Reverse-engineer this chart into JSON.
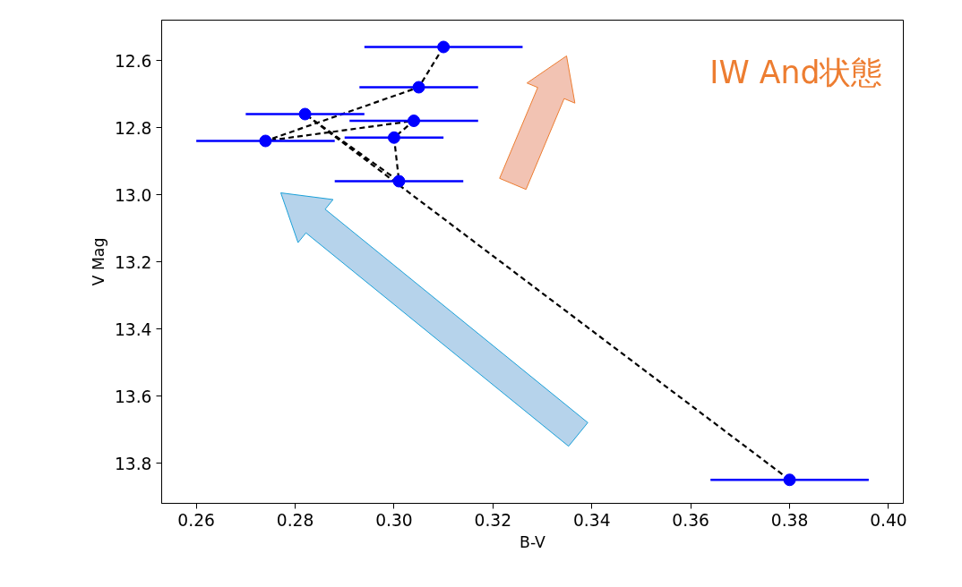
{
  "chart_data": {
    "type": "scatter",
    "xlabel": "B-V",
    "ylabel": "V Mag",
    "annotations": [
      "IW And状態"
    ],
    "xlim": [
      0.253,
      0.403
    ],
    "ylim": [
      13.92,
      12.48
    ],
    "xticks": [
      0.26,
      0.28,
      {
        "value": 0.3,
        "label": "0.30"
      },
      0.32,
      0.34,
      0.36,
      0.38,
      {
        "value": 0.4,
        "label": "0.40"
      }
    ],
    "yticks": [
      12.6,
      12.8,
      {
        "value": 13.0,
        "label": "13.0"
      },
      13.2,
      13.4,
      13.6,
      13.8
    ],
    "grid": false,
    "series": [
      {
        "type": "line",
        "color": "#000000",
        "line_style": "dashed",
        "marker": "none",
        "x": [
          0.31,
          0.305,
          0.274,
          0.304,
          0.3,
          0.301,
          0.282,
          0.38
        ],
        "values": [
          12.56,
          12.68,
          12.84,
          12.78,
          12.83,
          12.96,
          12.76,
          13.85
        ]
      },
      {
        "color": "#0000ff",
        "marker": "circle",
        "x": [
          0.31,
          0.305,
          0.274,
          0.304,
          0.3,
          0.301,
          0.282,
          0.38
        ],
        "values": [
          12.56,
          12.68,
          12.84,
          12.78,
          12.83,
          12.96,
          12.76,
          13.85
        ],
        "xerrors": [
          0.016,
          0.012,
          0.014,
          0.013,
          0.01,
          0.013,
          0.012,
          0.016
        ]
      }
    ]
  }
}
